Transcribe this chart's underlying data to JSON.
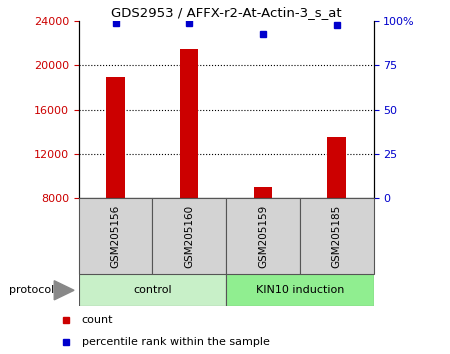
{
  "title": "GDS2953 / AFFX-r2-At-Actin-3_s_at",
  "samples": [
    "GSM205156",
    "GSM205160",
    "GSM205159",
    "GSM205185"
  ],
  "bar_values": [
    19000,
    21500,
    9000,
    13500
  ],
  "percentile_values": [
    99,
    99,
    93,
    98
  ],
  "bar_color": "#cc0000",
  "dot_color": "#0000cc",
  "ylim_left": [
    8000,
    24000
  ],
  "yticks_left": [
    8000,
    12000,
    16000,
    20000,
    24000
  ],
  "ylim_right": [
    0,
    100
  ],
  "yticks_right": [
    0,
    25,
    50,
    75,
    100
  ],
  "group1_label": "control",
  "group2_label": "KIN10 induction",
  "group1_color": "#c8f0c8",
  "group2_color": "#90ee90",
  "protocol_label": "protocol",
  "legend_count_label": "count",
  "legend_percentile_label": "percentile rank within the sample",
  "bar_width": 0.25,
  "background_color": "#ffffff",
  "plot_bg_color": "#ffffff",
  "label_box_color": "#d3d3d3",
  "right_axis_top_label": "100%"
}
